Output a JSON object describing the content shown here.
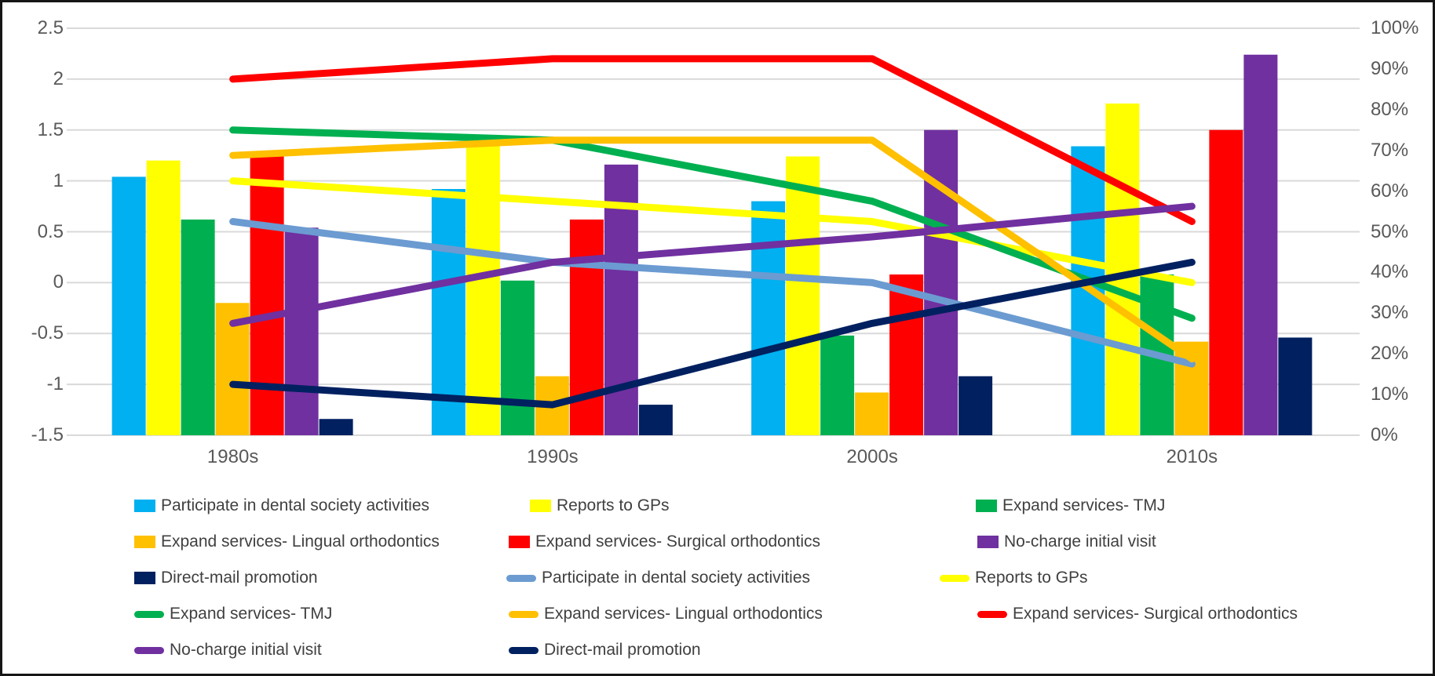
{
  "chart_data": {
    "type": "bar+line combo",
    "title": "",
    "categories": [
      "1980s",
      "1990s",
      "2000s",
      "2010s"
    ],
    "grid": true,
    "legend_position": "bottom",
    "left_axis": {
      "min": -1.5,
      "max": 2.5,
      "step": 0.5,
      "ticks": [
        "2.5",
        "2",
        "1.5",
        "1",
        "0.5",
        "0",
        "-0.5",
        "-1",
        "-1.5"
      ]
    },
    "right_axis": {
      "min": 0,
      "max": 100,
      "step": 10,
      "ticks": [
        "100%",
        "90%",
        "80%",
        "70%",
        "60%",
        "50%",
        "40%",
        "30%",
        "20%",
        "10%",
        "0%"
      ]
    },
    "bar_series": [
      {
        "name": "Participate in dental society activities",
        "color": "#00B0F0",
        "axis": "right",
        "values": [
          63.5,
          60.5,
          57.5,
          71
        ]
      },
      {
        "name": "Reports to GPs",
        "color": "#FFFF00",
        "axis": "right",
        "values": [
          67.5,
          71.5,
          68.5,
          81.5
        ]
      },
      {
        "name": "Expand services- TMJ",
        "color": "#00B050",
        "axis": "right",
        "values": [
          53,
          38,
          24.5,
          39.5
        ]
      },
      {
        "name": "Expand services- Lingual orthodontics",
        "color": "#FFC000",
        "axis": "right",
        "values": [
          32.5,
          14.5,
          10.5,
          23
        ]
      },
      {
        "name": "Expand services- Surgical orthodontics",
        "color": "#FF0000",
        "axis": "right",
        "values": [
          68.5,
          53,
          39.5,
          75
        ]
      },
      {
        "name": "No-charge initial visit",
        "color": "#7030A0",
        "axis": "right",
        "values": [
          51,
          66.5,
          75,
          93.5
        ]
      },
      {
        "name": "Direct-mail promotion",
        "color": "#002060",
        "axis": "right",
        "values": [
          4,
          7.5,
          14.5,
          24
        ]
      }
    ],
    "line_series": [
      {
        "name": "Participate in dental society activities",
        "color": "#6B9BD1",
        "axis": "left",
        "values": [
          0.6,
          0.2,
          0,
          -0.8
        ]
      },
      {
        "name": "Reports to GPs",
        "color": "#FFFF00",
        "axis": "left",
        "values": [
          1.0,
          0.8,
          0.6,
          0
        ]
      },
      {
        "name": "Expand services- TMJ",
        "color": "#00B050",
        "axis": "left",
        "values": [
          1.5,
          1.4,
          0.8,
          -0.35
        ]
      },
      {
        "name": "Expand services- Lingual orthodontics",
        "color": "#FFC000",
        "axis": "left",
        "values": [
          1.25,
          1.4,
          1.4,
          -0.75
        ]
      },
      {
        "name": "Expand services- Surgical orthodontics",
        "color": "#FF0000",
        "axis": "left",
        "values": [
          2.0,
          2.2,
          2.2,
          0.6
        ]
      },
      {
        "name": "No-charge initial visit",
        "color": "#7030A0",
        "axis": "left",
        "values": [
          -0.4,
          0.2,
          0.45,
          0.75
        ]
      },
      {
        "name": "Direct-mail promotion",
        "color": "#002060",
        "axis": "left",
        "values": [
          -1.0,
          -1.2,
          -0.4,
          0.2
        ]
      }
    ]
  }
}
